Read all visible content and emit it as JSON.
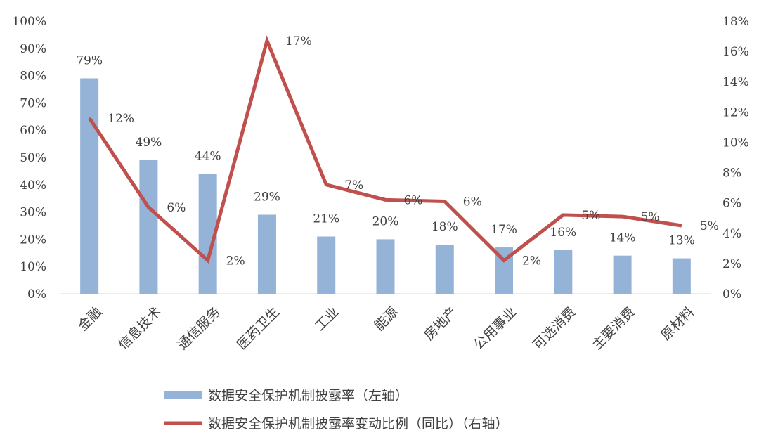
{
  "chart_data": {
    "type": "bar",
    "categories": [
      "金融",
      "信息技术",
      "通信服务",
      "医药卫生",
      "工业",
      "能源",
      "房地产",
      "公用事业",
      "可选消费",
      "主要消费",
      "原材料"
    ],
    "series": [
      {
        "name": "数据安全保护机制披露率（左轴）",
        "type": "bar",
        "axis": "left",
        "color": "#95B3D7",
        "values": [
          79,
          49,
          44,
          29,
          21,
          20,
          18,
          17,
          16,
          14,
          13
        ],
        "labels": [
          "79%",
          "49%",
          "44%",
          "29%",
          "21%",
          "20%",
          "18%",
          "17%",
          "16%",
          "14%",
          "13%"
        ]
      },
      {
        "name": "数据安全保护机制披露率变动比例（同比）（右轴）",
        "type": "line",
        "axis": "right",
        "color": "#C0504D",
        "values": [
          11.6,
          5.7,
          2.2,
          16.7,
          7.2,
          6.2,
          6.1,
          2.2,
          5.2,
          5.1,
          4.5
        ],
        "labels": [
          "12%",
          "6%",
          "2%",
          "17%",
          "7%",
          "6%",
          "6%",
          "2%",
          "5%",
          "5%",
          "5%"
        ]
      }
    ],
    "y_left": {
      "ylim": [
        0,
        100
      ],
      "ticks": [
        "0%",
        "10%",
        "20%",
        "30%",
        "40%",
        "50%",
        "60%",
        "70%",
        "80%",
        "90%",
        "100%"
      ]
    },
    "y_right": {
      "ylim": [
        0,
        18
      ],
      "ticks": [
        "0%",
        "2%",
        "4%",
        "6%",
        "8%",
        "10%",
        "12%",
        "14%",
        "16%",
        "18%"
      ]
    },
    "grid": false,
    "legend_position": "bottom"
  }
}
